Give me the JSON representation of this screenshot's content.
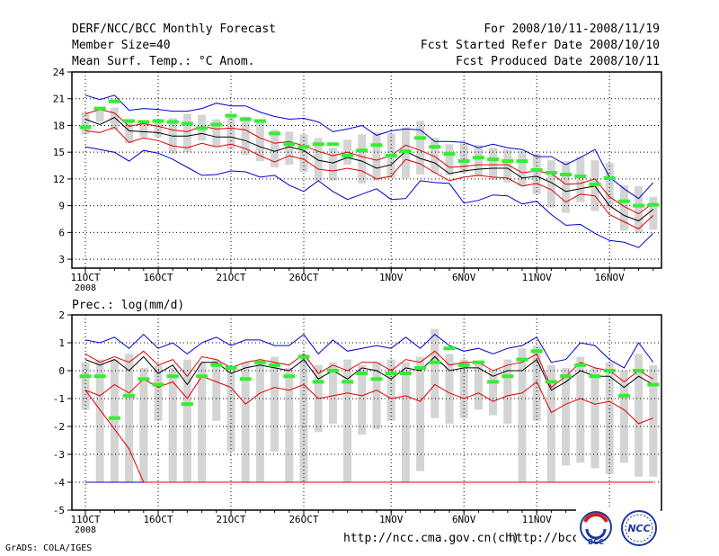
{
  "header": {
    "title": "DERF/NCC/BCC Monthly Forecast",
    "member_size": "Member Size=40",
    "variable": "Mean Surf. Temp.: °C Anom.",
    "period": "For 2008/10/11-2008/11/19",
    "start_date": "Fcst Started Refer Date 2008/10/10",
    "produced_date": "Fcst Produced Date 2008/10/11"
  },
  "footer": {
    "grads_credit": "GrADS: COLA/IGES",
    "url_1": "http://ncc.cma.gov.cn(ch)",
    "url_2": "http://bcc.c"
  },
  "logos": {
    "bcc": "BCC",
    "ncc": "NCC"
  },
  "colors": {
    "median": "#000000",
    "lower_band": "#e00000",
    "envelope": "#0000d0",
    "bar": "#d4d4d4",
    "marker": "#33ee33"
  },
  "chart_data": [
    {
      "type": "line",
      "title": "Mean Surf. Temp.: °C Anom.",
      "ylim": [
        2,
        24
      ],
      "yticks": [
        "24",
        "21",
        "18",
        "15",
        "12",
        "9",
        "6",
        "3"
      ],
      "ytick_values": [
        24,
        21,
        18,
        15,
        12,
        9,
        6,
        3
      ],
      "x_ticks": [
        {
          "day": 1,
          "label": "11OCT",
          "sublabel": "2008"
        },
        {
          "day": 6,
          "label": "16OCT",
          "sublabel": ""
        },
        {
          "day": 11,
          "label": "21OCT",
          "sublabel": ""
        },
        {
          "day": 16,
          "label": "26OCT",
          "sublabel": ""
        },
        {
          "day": 22,
          "label": "1NOV",
          "sublabel": ""
        },
        {
          "day": 27,
          "label": "6NOV",
          "sublabel": ""
        },
        {
          "day": 32,
          "label": "11NOV",
          "sublabel": ""
        },
        {
          "day": 37,
          "label": "16NOV",
          "sublabel": ""
        }
      ],
      "days": [
        1,
        2,
        3,
        4,
        5,
        6,
        7,
        8,
        9,
        10,
        11,
        12,
        13,
        14,
        15,
        16,
        17,
        18,
        19,
        20,
        21,
        22,
        23,
        24,
        25,
        26,
        27,
        28,
        29,
        30,
        31,
        32,
        33,
        34,
        35,
        36,
        37,
        38,
        39,
        40
      ],
      "series": [
        {
          "name": "max",
          "values": [
            21.4,
            20.9,
            21.4,
            19.7,
            19.9,
            19.8,
            19.6,
            19.6,
            19.9,
            20.5,
            20.2,
            20.2,
            19.5,
            19.0,
            18.7,
            18.8,
            18.4,
            17.3,
            17.6,
            18.0,
            16.9,
            17.4,
            17.6,
            17.5,
            16.2,
            16.2,
            16.1,
            15.5,
            15.9,
            15.5,
            15.3,
            14.5,
            14.5,
            13.6,
            14.4,
            15.3,
            12.2,
            10.9,
            9.8,
            11.6
          ]
        },
        {
          "name": "upper",
          "values": [
            19.3,
            19.8,
            19.4,
            17.9,
            18.2,
            17.9,
            17.5,
            17.3,
            17.9,
            17.6,
            17.7,
            17.5,
            16.6,
            16.0,
            16.2,
            15.7,
            15.1,
            14.6,
            15.0,
            14.5,
            14.1,
            14.6,
            15.8,
            15.2,
            14.5,
            13.3,
            13.4,
            13.6,
            13.6,
            13.6,
            12.7,
            12.9,
            12.6,
            11.4,
            11.5,
            12.0,
            10.0,
            8.9,
            8.1,
            9.3
          ]
        },
        {
          "name": "median",
          "values": [
            18.7,
            18.1,
            18.9,
            17.4,
            17.3,
            17.2,
            16.8,
            16.8,
            17.1,
            16.7,
            16.7,
            16.3,
            15.6,
            15.1,
            15.6,
            15.2,
            14.1,
            13.8,
            14.4,
            14.0,
            13.2,
            13.6,
            15.1,
            14.3,
            13.8,
            12.6,
            12.9,
            13.1,
            13.2,
            13.2,
            12.1,
            12.3,
            11.6,
            10.6,
            10.9,
            11.2,
            9.0,
            7.9,
            7.3,
            8.6
          ]
        },
        {
          "name": "lower",
          "values": [
            17.4,
            17.2,
            17.8,
            16.1,
            16.6,
            16.3,
            15.7,
            15.5,
            16.0,
            15.6,
            15.9,
            15.4,
            14.6,
            13.9,
            14.6,
            14.2,
            13.1,
            12.9,
            13.2,
            12.9,
            12.0,
            12.3,
            14.2,
            13.7,
            12.7,
            11.8,
            12.2,
            12.4,
            12.2,
            12.1,
            11.2,
            11.5,
            10.8,
            9.4,
            10.3,
            10.1,
            8.0,
            7.2,
            6.4,
            7.9
          ]
        },
        {
          "name": "min",
          "values": [
            15.6,
            15.3,
            15.0,
            14.0,
            15.2,
            14.9,
            14.2,
            13.3,
            12.4,
            12.5,
            12.9,
            12.8,
            12.2,
            12.4,
            11.3,
            10.6,
            11.8,
            10.6,
            9.7,
            10.3,
            10.9,
            9.7,
            9.8,
            11.8,
            11.6,
            11.5,
            9.3,
            9.6,
            10.2,
            10.1,
            9.2,
            9.5,
            8.0,
            6.8,
            6.9,
            5.9,
            5.1,
            4.9,
            4.3,
            5.9
          ]
        },
        {
          "name": "obs",
          "values": [
            17.8,
            19.9,
            20.7,
            18.5,
            18.4,
            18.5,
            18.4,
            18.2,
            17.7,
            18.1,
            19.1,
            18.7,
            18.5,
            17.1,
            15.9,
            15.6,
            15.9,
            15.9,
            14.6,
            15.2,
            15.8,
            14.6,
            15.1,
            16.6,
            15.6,
            14.8,
            14.0,
            14.4,
            14.2,
            14.0,
            14.0,
            13.0,
            12.7,
            12.5,
            12.3,
            11.4,
            12.1,
            9.5,
            9.0,
            9.1
          ]
        },
        {
          "name": "bar_top",
          "values": [
            19.5,
            20.0,
            20.0,
            18.7,
            18.5,
            18.7,
            18.8,
            19.3,
            19.2,
            18.7,
            19.0,
            19.0,
            18.5,
            17.5,
            17.3,
            17.0,
            16.6,
            15.5,
            16.4,
            17.0,
            17.2,
            17.1,
            17.8,
            18.5,
            16.6,
            15.9,
            16.0,
            15.8,
            15.5,
            15.3,
            15.1,
            14.8,
            14.1,
            14.0,
            14.5,
            14.1,
            13.8,
            11.3,
            11.2,
            10.0
          ]
        },
        {
          "name": "bar_bottom",
          "values": [
            17.0,
            18.4,
            17.5,
            16.0,
            16.7,
            16.7,
            14.8,
            15.0,
            16.3,
            15.7,
            15.3,
            14.7,
            14.0,
            13.3,
            13.6,
            12.8,
            11.8,
            11.8,
            13.6,
            11.5,
            11.8,
            12.1,
            12.1,
            12.5,
            12.6,
            12.4,
            12.7,
            12.3,
            11.9,
            11.6,
            11.2,
            10.3,
            8.8,
            8.2,
            9.4,
            8.4,
            8.7,
            6.2,
            5.9,
            6.3
          ]
        }
      ]
    },
    {
      "type": "line",
      "title": "Prec.: log(mm/d)",
      "ylim": [
        -5,
        2
      ],
      "yticks": [
        "2",
        "1",
        "0",
        "-1",
        "-2",
        "-3",
        "-4",
        "-5"
      ],
      "ytick_values": [
        2,
        1,
        0,
        -1,
        -2,
        -3,
        -4,
        -5
      ],
      "x_ticks": [
        {
          "day": 1,
          "label": "11OCT",
          "sublabel": "2008"
        },
        {
          "day": 6,
          "label": "16OCT",
          "sublabel": ""
        },
        {
          "day": 11,
          "label": "21OCT",
          "sublabel": ""
        },
        {
          "day": 16,
          "label": "26OCT",
          "sublabel": ""
        },
        {
          "day": 22,
          "label": "1NOV",
          "sublabel": ""
        },
        {
          "day": 27,
          "label": "6NOV",
          "sublabel": ""
        },
        {
          "day": 32,
          "label": "11NOV",
          "sublabel": ""
        },
        {
          "day": 37,
          "label": "16NOV",
          "sublabel": ""
        }
      ],
      "days": [
        1,
        2,
        3,
        4,
        5,
        6,
        7,
        8,
        9,
        10,
        11,
        12,
        13,
        14,
        15,
        16,
        17,
        18,
        19,
        20,
        21,
        22,
        23,
        24,
        25,
        26,
        27,
        28,
        29,
        30,
        31,
        32,
        33,
        34,
        35,
        36,
        37,
        38,
        39,
        40
      ],
      "series": [
        {
          "name": "max",
          "values": [
            1.1,
            1.0,
            1.2,
            0.8,
            1.3,
            0.8,
            1.0,
            0.6,
            1.0,
            1.2,
            0.9,
            1.1,
            1.1,
            0.9,
            0.9,
            1.3,
            0.6,
            1.1,
            0.7,
            0.8,
            0.9,
            0.8,
            1.2,
            0.8,
            1.3,
            0.9,
            0.7,
            0.8,
            0.6,
            0.8,
            0.9,
            1.2,
            0.3,
            0.4,
            1.0,
            0.9,
            0.4,
            0.1,
            1.0,
            0.3
          ]
        },
        {
          "name": "upper",
          "values": [
            0.6,
            0.3,
            0.5,
            0.3,
            0.7,
            0.2,
            0.4,
            -0.2,
            0.5,
            0.4,
            0.1,
            0.3,
            0.4,
            0.3,
            0.2,
            0.6,
            -0.1,
            0.2,
            0.0,
            0.3,
            0.3,
            0.0,
            0.4,
            0.3,
            0.7,
            0.2,
            0.3,
            0.3,
            0.0,
            0.2,
            0.3,
            0.6,
            -0.6,
            -0.2,
            0.3,
            0.1,
            0.0,
            -0.4,
            0.0,
            -0.3
          ]
        },
        {
          "name": "median",
          "values": [
            0.4,
            0.2,
            0.4,
            0.0,
            0.5,
            -0.1,
            0.2,
            -0.5,
            0.3,
            0.3,
            -0.1,
            0.1,
            0.2,
            0.1,
            0.0,
            0.4,
            -0.3,
            0.0,
            -0.3,
            0.1,
            0.0,
            -0.3,
            0.1,
            0.0,
            0.5,
            0.0,
            0.1,
            0.1,
            -0.2,
            0.0,
            0.0,
            0.4,
            -0.7,
            -0.4,
            0.0,
            -0.2,
            -0.2,
            -0.6,
            -0.2,
            -0.5
          ]
        },
        {
          "name": "lower",
          "values": [
            -0.7,
            -1.4,
            -2.1,
            -2.8,
            -4.0,
            -4.0,
            -4.0,
            -4.0,
            -4.0,
            -4.0,
            -4.0,
            -4.0,
            -4.0,
            -4.0,
            -4.0,
            -4.0,
            -4.0,
            -4.0,
            -4.0,
            -4.0,
            -4.0,
            -4.0,
            -4.0,
            -4.0,
            -4.0,
            -4.0,
            -4.0,
            -4.0,
            -4.0,
            -4.0,
            -4.0,
            -4.0,
            -4.0,
            -4.0,
            -4.0,
            -4.0,
            -4.0,
            -4.0,
            -4.0,
            -4.0
          ]
        },
        {
          "name": "lower_curve",
          "values": [
            -0.7,
            -0.9,
            -0.5,
            -0.8,
            -0.3,
            -0.6,
            -0.4,
            -1.0,
            -0.2,
            -0.4,
            -0.6,
            -1.2,
            -0.8,
            -0.6,
            -0.7,
            -0.5,
            -1.0,
            -0.9,
            -0.8,
            -0.9,
            -0.7,
            -1.0,
            -0.9,
            -1.1,
            -0.5,
            -0.8,
            -1.0,
            -0.8,
            -1.1,
            -0.9,
            -0.8,
            -0.4,
            -1.5,
            -1.2,
            -1.0,
            -1.2,
            -1.1,
            -1.4,
            -1.9,
            -1.7
          ]
        },
        {
          "name": "min",
          "values": [
            -4.0,
            -4.0,
            -4.0,
            -4.0,
            -4.0,
            -4.0,
            -4.0,
            -4.0,
            -4.0,
            -4.0,
            -4.0,
            -4.0,
            -4.0,
            -4.0,
            -4.0,
            -4.0,
            -4.0,
            -4.0,
            -4.0,
            -4.0,
            -4.0,
            -4.0,
            -4.0,
            -4.0,
            -4.0,
            -4.0,
            -4.0,
            -4.0,
            -4.0,
            -4.0,
            -4.0,
            -4.0,
            -4.0,
            -4.0,
            -4.0,
            -4.0,
            -4.0,
            -4.0,
            -4.0,
            -4.0
          ]
        },
        {
          "name": "obs",
          "values": [
            -0.2,
            -0.2,
            -1.7,
            -0.9,
            -0.3,
            -0.5,
            -0.2,
            -1.2,
            -0.2,
            0.2,
            0.1,
            -0.3,
            0.3,
            0.2,
            -0.2,
            0.5,
            -0.4,
            0.0,
            -0.4,
            -0.1,
            -0.3,
            -0.1,
            -0.1,
            0.1,
            0.3,
            0.8,
            0.2,
            0.3,
            -0.4,
            -0.2,
            0.4,
            0.7,
            -0.4,
            -0.2,
            0.2,
            -0.2,
            0.0,
            -0.9,
            0.0,
            -0.5
          ]
        },
        {
          "name": "bar_top",
          "values": [
            0.3,
            0.4,
            0.4,
            0.6,
            0.1,
            0.2,
            0.1,
            0.4,
            0.3,
            0.4,
            0.2,
            0.3,
            0.3,
            0.5,
            0.1,
            0.6,
            0.2,
            0.3,
            0.4,
            0.2,
            0.3,
            0.4,
            0.3,
            0.5,
            1.5,
            0.6,
            0.4,
            0.3,
            0.0,
            0.4,
            0.8,
            0.9,
            0.2,
            0.1,
            0.5,
            0.1,
            0.3,
            0.0,
            0.6,
            0.2
          ]
        },
        {
          "name": "bar_bottom",
          "values": [
            -1.4,
            -4.0,
            -4.0,
            -4.0,
            -4.0,
            -1.8,
            -4.0,
            -4.0,
            -4.0,
            -1.8,
            -2.9,
            -4.0,
            -4.0,
            -2.9,
            -4.0,
            -4.0,
            -2.2,
            -1.9,
            -4.0,
            -2.3,
            -2.1,
            -1.8,
            -4.0,
            -3.6,
            -1.7,
            -1.9,
            -1.7,
            -1.4,
            -1.6,
            -1.9,
            -4.0,
            -1.8,
            -4.0,
            -3.4,
            -3.3,
            -3.5,
            -3.7,
            -3.3,
            -3.8,
            -3.8
          ]
        }
      ]
    }
  ]
}
